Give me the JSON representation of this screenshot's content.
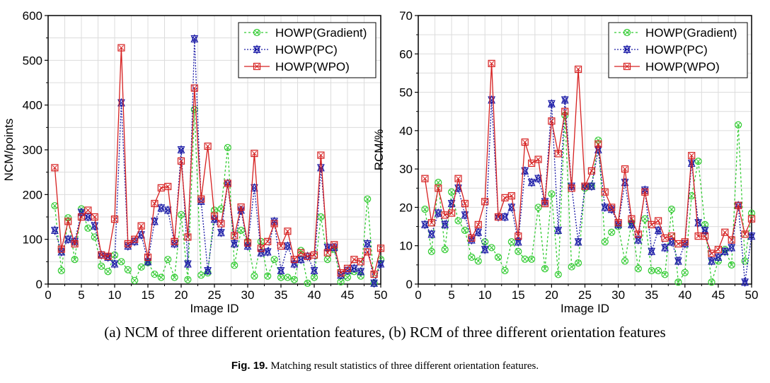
{
  "sub_caption": "(a) NCM of three different orientation features, (b) RCM of three different orientation features",
  "figure_caption": {
    "label": "Fig. 19.",
    "text": " Matching result statistics of three different orientation features."
  },
  "series_style": [
    {
      "color": "#33cc33",
      "dash": "3,3",
      "marker": "circle-x"
    },
    {
      "color": "#1a1aa6",
      "dash": "2,2",
      "marker": "star-x"
    },
    {
      "color": "#d62020",
      "dash": "",
      "marker": "square-x"
    }
  ],
  "chart_data": [
    {
      "type": "line",
      "xlabel": "Image ID",
      "ylabel": "NCM/points",
      "xlim": [
        0,
        50
      ],
      "ylim": [
        0,
        600
      ],
      "xticks": [
        0,
        5,
        10,
        15,
        20,
        25,
        30,
        35,
        40,
        45,
        50
      ],
      "yticks": [
        0,
        100,
        200,
        300,
        400,
        500,
        600
      ],
      "grid": true,
      "legend": "top-right",
      "x": [
        1,
        2,
        3,
        4,
        5,
        6,
        7,
        8,
        9,
        10,
        11,
        12,
        13,
        14,
        15,
        16,
        17,
        18,
        19,
        20,
        21,
        22,
        23,
        24,
        25,
        26,
        27,
        28,
        29,
        30,
        31,
        32,
        33,
        34,
        35,
        36,
        37,
        38,
        39,
        40,
        41,
        42,
        43,
        44,
        45,
        46,
        47,
        48,
        49,
        50
      ],
      "series": [
        {
          "name": "HOWP(Gradient)",
          "values": [
            175,
            30,
            148,
            55,
            168,
            125,
            105,
            40,
            28,
            65,
            50,
            32,
            8,
            38,
            48,
            22,
            15,
            55,
            15,
            155,
            10,
            390,
            20,
            25,
            165,
            168,
            305,
            42,
            120,
            95,
            18,
            95,
            18,
            55,
            15,
            15,
            10,
            75,
            2,
            15,
            150,
            55,
            78,
            5,
            15,
            28,
            18,
            190,
            2,
            55
          ]
        },
        {
          "name": "HOWP(PC)",
          "values": [
            120,
            72,
            100,
            95,
            160,
            150,
            130,
            65,
            60,
            45,
            405,
            85,
            95,
            110,
            50,
            140,
            170,
            165,
            90,
            300,
            45,
            548,
            185,
            30,
            145,
            115,
            225,
            90,
            165,
            85,
            215,
            70,
            72,
            140,
            30,
            85,
            45,
            55,
            62,
            30,
            260,
            82,
            82,
            20,
            30,
            35,
            28,
            90,
            2,
            45
          ]
        },
        {
          "name": "HOWP(WPO)",
          "values": [
            260,
            78,
            140,
            90,
            150,
            165,
            150,
            65,
            62,
            145,
            528,
            90,
            100,
            130,
            60,
            180,
            215,
            218,
            95,
            275,
            105,
            438,
            190,
            308,
            152,
            135,
            225,
            108,
            172,
            92,
            292,
            80,
            95,
            135,
            85,
            118,
            55,
            70,
            62,
            65,
            288,
            70,
            88,
            25,
            35,
            55,
            50,
            72,
            22,
            80
          ]
        }
      ]
    },
    {
      "type": "line",
      "xlabel": "Image ID",
      "ylabel": "RCM/%",
      "xlim": [
        0,
        50
      ],
      "ylim": [
        0,
        70
      ],
      "xticks": [
        0,
        5,
        10,
        15,
        20,
        25,
        30,
        35,
        40,
        45,
        50
      ],
      "yticks": [
        0,
        10,
        20,
        30,
        40,
        50,
        60,
        70
      ],
      "grid": true,
      "legend": "top-right",
      "x": [
        1,
        2,
        3,
        4,
        5,
        6,
        7,
        8,
        9,
        10,
        11,
        12,
        13,
        14,
        15,
        16,
        17,
        18,
        19,
        20,
        21,
        22,
        23,
        24,
        25,
        26,
        27,
        28,
        29,
        30,
        31,
        32,
        33,
        34,
        35,
        36,
        37,
        38,
        39,
        40,
        41,
        42,
        43,
        44,
        45,
        46,
        47,
        48,
        49,
        50
      ],
      "series": [
        {
          "name": "HOWP(Gradient)",
          "values": [
            19.5,
            8.5,
            26.5,
            9,
            24,
            16.5,
            14,
            7,
            6,
            11,
            9.5,
            7,
            3.5,
            11,
            8.5,
            6.5,
            6.5,
            20,
            4,
            23.5,
            2.5,
            44,
            4.5,
            5.5,
            25,
            25.5,
            37.5,
            11,
            13.5,
            15,
            6,
            16,
            4,
            17,
            3.5,
            3.5,
            2.5,
            19.5,
            0.5,
            3,
            23,
            32,
            15.5,
            0.5,
            6,
            9,
            5,
            41.5,
            6,
            18.5
          ]
        },
        {
          "name": "HOWP(PC)",
          "values": [
            15.5,
            13,
            18.5,
            15.5,
            21,
            25,
            18,
            11.5,
            13.5,
            9,
            48,
            17.5,
            17.5,
            20,
            11,
            29.5,
            26.5,
            27.5,
            21.5,
            47,
            14,
            48,
            25.5,
            11,
            25.5,
            25.5,
            35,
            20,
            19.5,
            15.5,
            26.5,
            15.5,
            11.5,
            24.5,
            8.5,
            14,
            9.5,
            11,
            6,
            10.5,
            31.5,
            16,
            14,
            6,
            7,
            8.5,
            9.5,
            20.5,
            0.5,
            12.5
          ]
        },
        {
          "name": "HOWP(WPO)",
          "values": [
            27.5,
            16,
            25,
            18,
            18.5,
            27.5,
            21,
            12,
            15.5,
            21.5,
            57.5,
            17.5,
            22.5,
            23,
            12.5,
            37,
            31.5,
            32.5,
            21,
            42.5,
            34,
            45,
            25,
            56,
            25.5,
            29.5,
            36.5,
            24,
            20,
            16,
            30,
            17,
            13,
            24,
            15.5,
            16.5,
            12,
            12.5,
            10.5,
            11,
            33.5,
            12.5,
            12.5,
            8,
            9,
            13.5,
            11.5,
            20.5,
            13,
            17
          ]
        }
      ]
    }
  ]
}
